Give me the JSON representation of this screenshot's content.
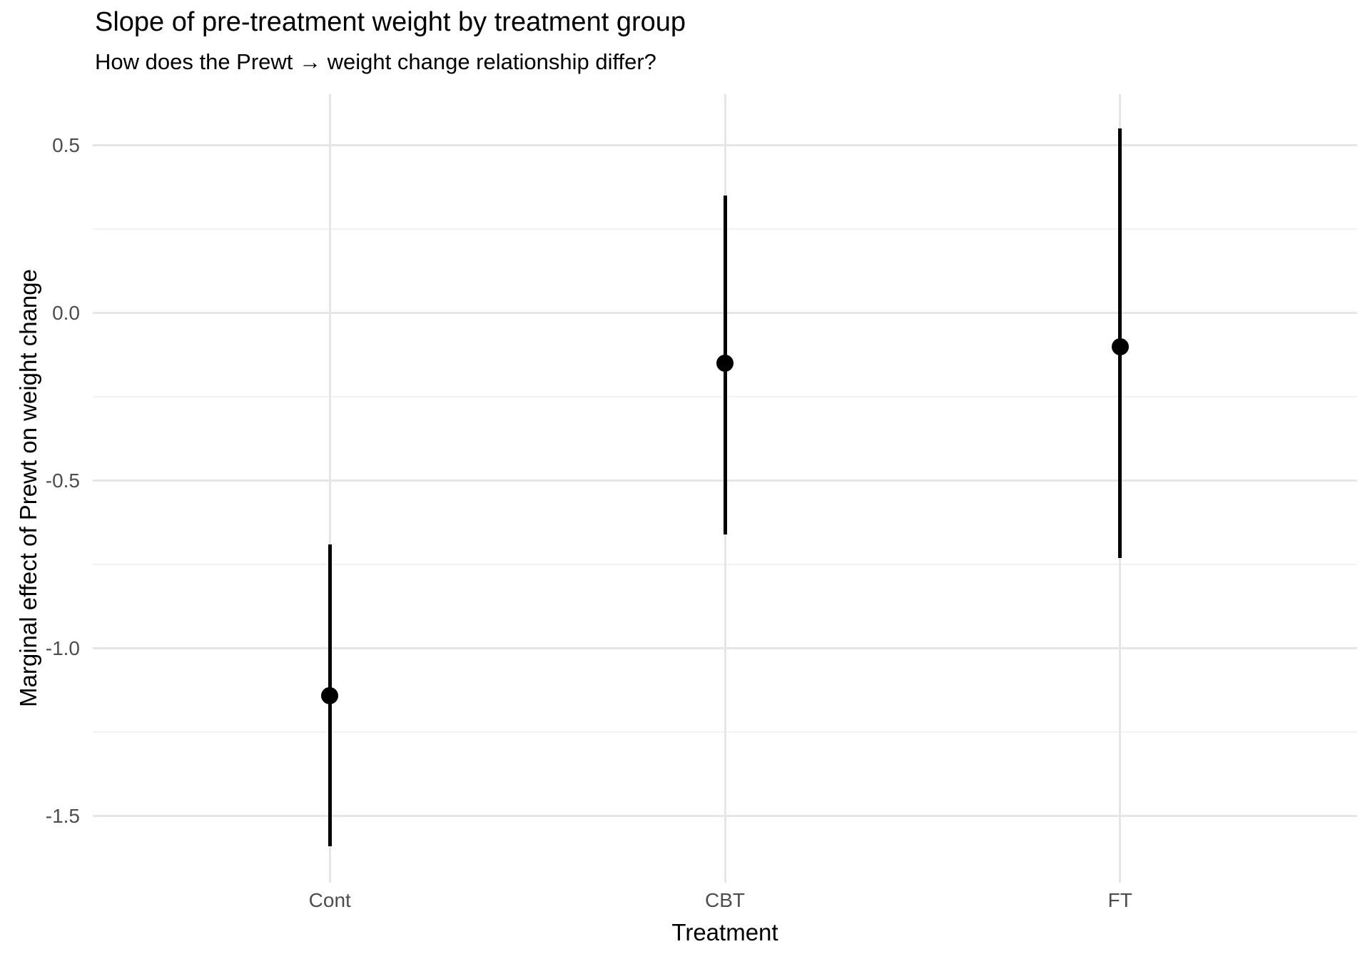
{
  "chart_data": {
    "type": "pointrange",
    "title": "Slope of pre-treatment weight by treatment group",
    "subtitle": "How does the Prewt → weight change relationship differ?",
    "xlabel": "Treatment",
    "ylabel": "Marginal effect of Prewt on weight change",
    "categories": [
      "Cont",
      "CBT",
      "FT"
    ],
    "series": [
      {
        "name": "marginal-effect-of-prewt",
        "points": [
          {
            "category": "Cont",
            "estimate": -1.14,
            "ci_low": -1.59,
            "ci_high": -0.69
          },
          {
            "category": "CBT",
            "estimate": -0.15,
            "ci_low": -0.66,
            "ci_high": 0.35
          },
          {
            "category": "FT",
            "estimate": -0.1,
            "ci_low": -0.73,
            "ci_high": 0.55
          }
        ]
      }
    ],
    "y_ticks": [
      {
        "value": 0.5,
        "label": "0.5"
      },
      {
        "value": 0.0,
        "label": "0.0"
      },
      {
        "value": -0.5,
        "label": "-0.5"
      },
      {
        "value": -1.0,
        "label": "-1.0"
      },
      {
        "value": -1.5,
        "label": "-1.5"
      }
    ],
    "y_minor_ticks": [
      0.25,
      -0.25,
      -0.75,
      -1.25
    ],
    "ylim": [
      -1.698,
      0.653
    ],
    "grid": true,
    "legend": "none"
  },
  "colors": {
    "background": "#FFFFFF",
    "text": "#000000",
    "tick_label": "#4D4D4D",
    "grid_major": "#E6E6E6",
    "grid_minor": "#F2F2F2",
    "point": "#000000"
  }
}
